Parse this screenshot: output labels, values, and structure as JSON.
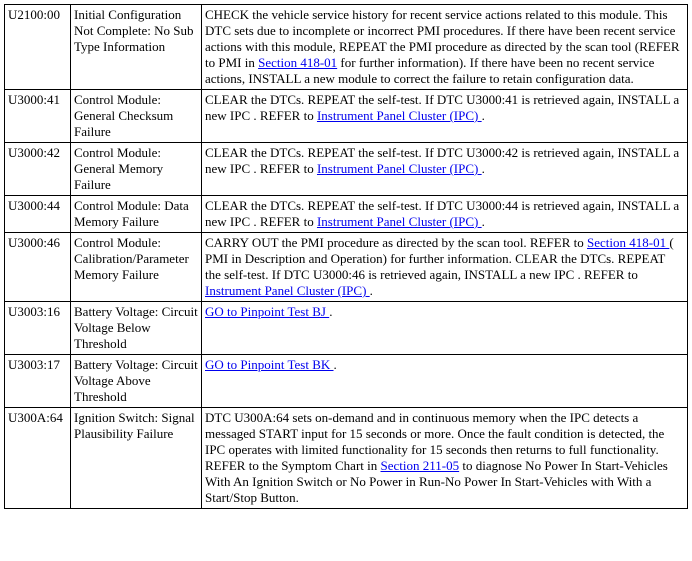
{
  "rows": [
    {
      "code": "U2100:00",
      "desc": "Initial Configuration Not Complete: No Sub Type Information",
      "action": [
        {
          "t": "CHECK the vehicle service history for recent service actions related to this module. This DTC sets due to incomplete or incorrect PMI procedures. If there have been recent service actions with this module, REPEAT the PMI procedure as directed by the scan tool (REFER to PMI in "
        },
        {
          "l": "Section 418-01"
        },
        {
          "t": " for further information). If there have been no recent service actions, INSTALL a new module to correct the failure to retain configuration data."
        }
      ]
    },
    {
      "code": "U3000:41",
      "desc": "Control Module: General Checksum Failure",
      "action": [
        {
          "t": "CLEAR the DTCs. REPEAT the self-test. If DTC U3000:41 is retrieved again, INSTALL a new IPC . REFER to "
        },
        {
          "l": "Instrument Panel Cluster (IPC) "
        },
        {
          "t": "."
        }
      ]
    },
    {
      "code": "U3000:42",
      "desc": "Control Module: General Memory Failure",
      "action": [
        {
          "t": "CLEAR the DTCs. REPEAT the self-test. If DTC U3000:42 is retrieved again, INSTALL a new IPC . REFER to "
        },
        {
          "l": "Instrument Panel Cluster (IPC) "
        },
        {
          "t": "."
        }
      ]
    },
    {
      "code": "U3000:44",
      "desc": "Control Module: Data Memory Failure",
      "action": [
        {
          "t": "CLEAR the DTCs. REPEAT the self-test. If DTC U3000:44 is retrieved again, INSTALL a new IPC . REFER to "
        },
        {
          "l": "Instrument Panel Cluster (IPC) "
        },
        {
          "t": "."
        }
      ]
    },
    {
      "code": "U3000:46",
      "desc": "Control Module: Calibration/Parameter Memory Failure",
      "action": [
        {
          "t": "CARRY OUT the PMI procedure as directed by the scan tool. REFER to "
        },
        {
          "l": "Section 418-01 "
        },
        {
          "t": "( PMI in Description and Operation) for further information. CLEAR the DTCs. REPEAT the self-test. If DTC U3000:46 is retrieved again, INSTALL a new IPC . REFER to "
        },
        {
          "l": "Instrument Panel Cluster (IPC) "
        },
        {
          "t": "."
        }
      ]
    },
    {
      "code": "U3003:16",
      "desc": "Battery Voltage: Circuit Voltage Below Threshold",
      "action": [
        {
          "l": "GO to Pinpoint Test BJ "
        },
        {
          "t": "."
        }
      ]
    },
    {
      "code": "U3003:17",
      "desc": "Battery Voltage: Circuit Voltage Above Threshold",
      "action": [
        {
          "l": "GO to Pinpoint Test BK "
        },
        {
          "t": "."
        }
      ]
    },
    {
      "code": "U300A:64",
      "desc": "Ignition Switch: Signal Plausibility Failure",
      "action": [
        {
          "t": "DTC U300A:64 sets on-demand and in continuous memory when the IPC detects a messaged START input for 15 seconds or more. Once the fault condition is detected, the IPC operates with limited functionality for 15 seconds then returns to full functionality. REFER to the Symptom Chart in "
        },
        {
          "l": "Section 211-05"
        },
        {
          "t": " to diagnose No Power In Start-Vehicles With An Ignition Switch or No Power in Run-No Power In Start-Vehicles with With a Start/Stop Button."
        }
      ]
    }
  ]
}
